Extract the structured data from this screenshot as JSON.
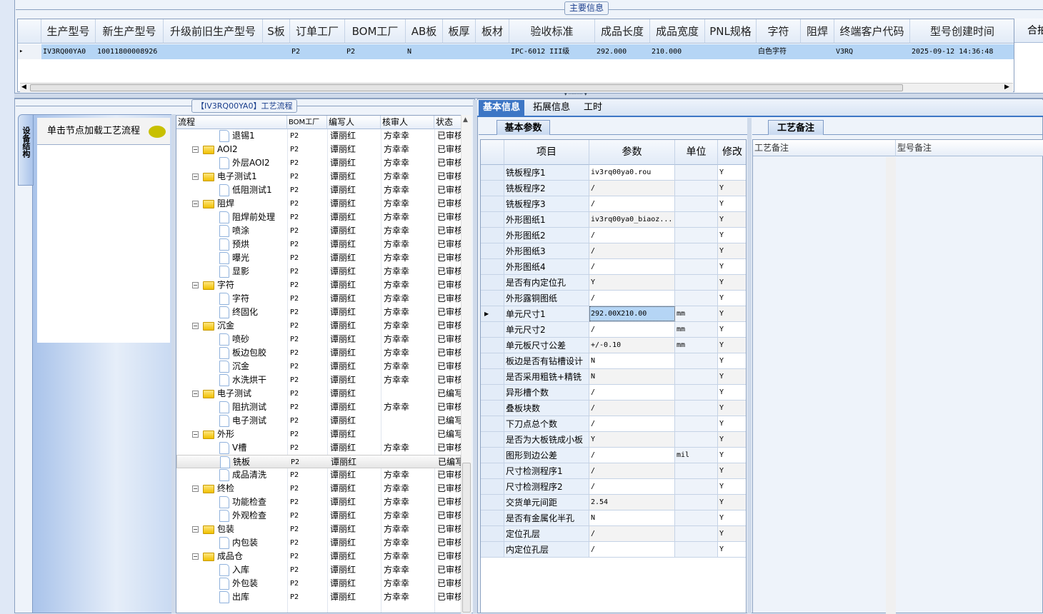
{
  "main_info": {
    "title": "主要信息",
    "columns": [
      "生产型号",
      "新生产型号",
      "升级前旧生产型号",
      "S板",
      "订单工厂",
      "BOM工厂",
      "AB板",
      "板厚",
      "板材",
      "验收标准",
      "成品长度",
      "成品宽度",
      "PNL规格",
      "字符",
      "阻焊",
      "终端客户代码",
      "型号创建时间"
    ],
    "extra_column": "合拍",
    "row": [
      "IV3RQ00YA0",
      "10011800008926",
      "",
      "",
      "P2",
      "P2",
      "N",
      "",
      "",
      "IPC-6012 III级",
      "292.000",
      "210.000",
      "",
      "白色字符",
      "",
      "V3RQ",
      "2025-09-12 14:36:48"
    ]
  },
  "process": {
    "title": "【IV3RQ00YA0】工艺流程",
    "side_tab": "设备结构",
    "hint": "单击节点加载工艺流程",
    "columns": [
      "流程",
      "BOM工厂",
      "编写人",
      "核审人",
      "状态"
    ],
    "rows": [
      {
        "name": "退锡1",
        "type": "leaf",
        "bom": "P2",
        "writer": "谭丽红",
        "reviewer": "方幸幸",
        "status": "已审核"
      },
      {
        "name": "AOI2",
        "type": "folder",
        "bom": "P2",
        "writer": "谭丽红",
        "reviewer": "方幸幸",
        "status": "已审核"
      },
      {
        "name": "外层AOI2",
        "type": "leaf",
        "bom": "P2",
        "writer": "谭丽红",
        "reviewer": "方幸幸",
        "status": "已审核"
      },
      {
        "name": "电子测试1",
        "type": "folder",
        "bom": "P2",
        "writer": "谭丽红",
        "reviewer": "方幸幸",
        "status": "已审核"
      },
      {
        "name": "低阻测试1",
        "type": "leaf",
        "bom": "P2",
        "writer": "谭丽红",
        "reviewer": "方幸幸",
        "status": "已审核"
      },
      {
        "name": "阻焊",
        "type": "folder",
        "bom": "P2",
        "writer": "谭丽红",
        "reviewer": "方幸幸",
        "status": "已审核"
      },
      {
        "name": "阻焊前处理",
        "type": "leaf",
        "bom": "P2",
        "writer": "谭丽红",
        "reviewer": "方幸幸",
        "status": "已审核"
      },
      {
        "name": "喷涂",
        "type": "leaf",
        "bom": "P2",
        "writer": "谭丽红",
        "reviewer": "方幸幸",
        "status": "已审核"
      },
      {
        "name": "预烘",
        "type": "leaf",
        "bom": "P2",
        "writer": "谭丽红",
        "reviewer": "方幸幸",
        "status": "已审核"
      },
      {
        "name": "曝光",
        "type": "leaf",
        "bom": "P2",
        "writer": "谭丽红",
        "reviewer": "方幸幸",
        "status": "已审核"
      },
      {
        "name": "显影",
        "type": "leaf",
        "bom": "P2",
        "writer": "谭丽红",
        "reviewer": "方幸幸",
        "status": "已审核"
      },
      {
        "name": "字符",
        "type": "folder",
        "bom": "P2",
        "writer": "谭丽红",
        "reviewer": "方幸幸",
        "status": "已审核"
      },
      {
        "name": "字符",
        "type": "leaf",
        "bom": "P2",
        "writer": "谭丽红",
        "reviewer": "方幸幸",
        "status": "已审核"
      },
      {
        "name": "终固化",
        "type": "leaf",
        "bom": "P2",
        "writer": "谭丽红",
        "reviewer": "方幸幸",
        "status": "已审核"
      },
      {
        "name": "沉金",
        "type": "folder",
        "bom": "P2",
        "writer": "谭丽红",
        "reviewer": "方幸幸",
        "status": "已审核"
      },
      {
        "name": "喷砂",
        "type": "leaf",
        "bom": "P2",
        "writer": "谭丽红",
        "reviewer": "方幸幸",
        "status": "已审核"
      },
      {
        "name": "板边包胶",
        "type": "leaf",
        "bom": "P2",
        "writer": "谭丽红",
        "reviewer": "方幸幸",
        "status": "已审核"
      },
      {
        "name": "沉金",
        "type": "leaf",
        "bom": "P2",
        "writer": "谭丽红",
        "reviewer": "方幸幸",
        "status": "已审核"
      },
      {
        "name": "水洗烘干",
        "type": "leaf",
        "bom": "P2",
        "writer": "谭丽红",
        "reviewer": "方幸幸",
        "status": "已审核"
      },
      {
        "name": "电子测试",
        "type": "folder",
        "bom": "P2",
        "writer": "谭丽红",
        "reviewer": "",
        "status": "已编写"
      },
      {
        "name": "阻抗测试",
        "type": "leaf",
        "bom": "P2",
        "writer": "谭丽红",
        "reviewer": "方幸幸",
        "status": "已审核"
      },
      {
        "name": "电子测试",
        "type": "leaf",
        "bom": "P2",
        "writer": "谭丽红",
        "reviewer": "",
        "status": "已编写"
      },
      {
        "name": "外形",
        "type": "folder",
        "bom": "P2",
        "writer": "谭丽红",
        "reviewer": "",
        "status": "已编写"
      },
      {
        "name": "V槽",
        "type": "leaf",
        "bom": "P2",
        "writer": "谭丽红",
        "reviewer": "方幸幸",
        "status": "已审核"
      },
      {
        "name": "铣板",
        "type": "leaf",
        "bom": "P2",
        "writer": "谭丽红",
        "reviewer": "",
        "status": "已编写",
        "selected": true
      },
      {
        "name": "成品清洗",
        "type": "leaf",
        "bom": "P2",
        "writer": "谭丽红",
        "reviewer": "方幸幸",
        "status": "已审核"
      },
      {
        "name": "终检",
        "type": "folder",
        "bom": "P2",
        "writer": "谭丽红",
        "reviewer": "方幸幸",
        "status": "已审核"
      },
      {
        "name": "功能检查",
        "type": "leaf",
        "bom": "P2",
        "writer": "谭丽红",
        "reviewer": "方幸幸",
        "status": "已审核"
      },
      {
        "name": "外观检查",
        "type": "leaf",
        "bom": "P2",
        "writer": "谭丽红",
        "reviewer": "方幸幸",
        "status": "已审核"
      },
      {
        "name": "包装",
        "type": "folder",
        "bom": "P2",
        "writer": "谭丽红",
        "reviewer": "方幸幸",
        "status": "已审核"
      },
      {
        "name": "内包装",
        "type": "leaf",
        "bom": "P2",
        "writer": "谭丽红",
        "reviewer": "方幸幸",
        "status": "已审核"
      },
      {
        "name": "成品仓",
        "type": "folder",
        "bom": "P2",
        "writer": "谭丽红",
        "reviewer": "方幸幸",
        "status": "已审核"
      },
      {
        "name": "入库",
        "type": "leaf",
        "bom": "P2",
        "writer": "谭丽红",
        "reviewer": "方幸幸",
        "status": "已审核"
      },
      {
        "name": "外包装",
        "type": "leaf",
        "bom": "P2",
        "writer": "谭丽红",
        "reviewer": "方幸幸",
        "status": "已审核"
      },
      {
        "name": "出库",
        "type": "leaf",
        "bom": "P2",
        "writer": "谭丽红",
        "reviewer": "方幸幸",
        "status": "已审核"
      }
    ]
  },
  "tabs": [
    "基本信息",
    "拓展信息",
    "工时"
  ],
  "basic": {
    "subtab": "基本参数",
    "columns": [
      "项目",
      "参数",
      "单位",
      "修改"
    ],
    "rows": [
      [
        "铣板程序1",
        "iv3rq00ya0.rou",
        "",
        "Y"
      ],
      [
        "铣板程序2",
        "/",
        "",
        "Y"
      ],
      [
        "铣板程序3",
        "/",
        "",
        "Y"
      ],
      [
        "外形图纸1",
        "iv3rq00ya0_biaoz...",
        "",
        "Y"
      ],
      [
        "外形图纸2",
        "/",
        "",
        "Y"
      ],
      [
        "外形图纸3",
        "/",
        "",
        "Y"
      ],
      [
        "外形图纸4",
        "/",
        "",
        "Y"
      ],
      [
        "是否有内定位孔",
        "Y",
        "",
        "Y"
      ],
      [
        "外形露铜图纸",
        "/",
        "",
        "Y"
      ],
      [
        "单元尺寸1",
        "292.00X210.00",
        "mm",
        "Y"
      ],
      [
        "单元尺寸2",
        "/",
        "mm",
        "Y"
      ],
      [
        "单元板尺寸公差",
        "+/-0.10",
        "mm",
        "Y"
      ],
      [
        "板边是否有钻槽设计",
        "N",
        "",
        "Y"
      ],
      [
        "是否采用粗铣+精铣",
        "N",
        "",
        "Y"
      ],
      [
        "异形槽个数",
        "/",
        "",
        "Y"
      ],
      [
        "叠板块数",
        "/",
        "",
        "Y"
      ],
      [
        "下刀点总个数",
        "/",
        "",
        "Y"
      ],
      [
        "是否为大板铣成小板",
        "Y",
        "",
        "Y"
      ],
      [
        "图形到边公差",
        "/",
        "mil",
        "Y"
      ],
      [
        "尺寸检测程序1",
        "/",
        "",
        "Y"
      ],
      [
        "尺寸检测程序2",
        "/",
        "",
        "Y"
      ],
      [
        "交货单元间距",
        "2.54",
        "",
        "Y"
      ],
      [
        "是否有金属化半孔",
        "N",
        "",
        "Y"
      ],
      [
        "定位孔层",
        "/",
        "",
        "Y"
      ],
      [
        "内定位孔层",
        "/",
        "",
        "Y"
      ]
    ]
  },
  "remarks": {
    "subtab": "工艺备注",
    "columns": [
      "工艺备注",
      "型号备注"
    ]
  },
  "colors": {
    "selection": "#b5d5f5",
    "accent": "#3d76c5",
    "panel": "#eef3fa"
  }
}
